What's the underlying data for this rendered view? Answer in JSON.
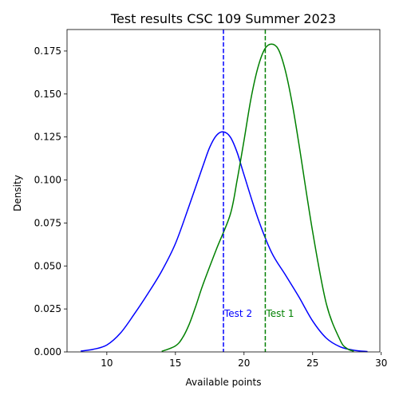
{
  "chart_data": {
    "type": "line",
    "title": "Test results CSC 109 Summer 2023",
    "xlabel": "Available points",
    "ylabel": "Density",
    "xlim": [
      7.1,
      29.9
    ],
    "ylim": [
      0.0,
      0.1875
    ],
    "x_ticks": [
      10,
      15,
      20,
      25,
      30
    ],
    "y_ticks": [
      0.0,
      0.025,
      0.05,
      0.075,
      0.1,
      0.125,
      0.15,
      0.175
    ],
    "x_tick_labels": [
      "10",
      "15",
      "20",
      "25",
      "30"
    ],
    "y_tick_labels": [
      "0.000",
      "0.025",
      "0.050",
      "0.075",
      "0.100",
      "0.125",
      "0.150",
      "0.175"
    ],
    "grid": false,
    "series": [
      {
        "color": "#0000ff",
        "x": [
          8.1,
          9.0,
          10.0,
          11.0,
          12.0,
          13.0,
          14.0,
          15.0,
          16.0,
          17.0,
          17.5,
          18.0,
          18.5,
          19.0,
          19.5,
          20.0,
          21.0,
          22.0,
          23.0,
          24.0,
          25.0,
          26.0,
          27.0,
          28.0,
          29.0
        ],
        "y": [
          0.0005,
          0.0015,
          0.004,
          0.011,
          0.022,
          0.034,
          0.047,
          0.063,
          0.085,
          0.108,
          0.119,
          0.126,
          0.128,
          0.125,
          0.116,
          0.103,
          0.078,
          0.058,
          0.045,
          0.032,
          0.018,
          0.008,
          0.003,
          0.001,
          0.0002
        ]
      },
      {
        "color": "#008000",
        "x": [
          14.0,
          15.0,
          15.5,
          16.0,
          16.5,
          17.0,
          18.0,
          19.0,
          19.5,
          20.0,
          20.5,
          21.0,
          21.5,
          22.0,
          22.5,
          23.0,
          23.5,
          24.0,
          25.0,
          26.0,
          27.0,
          27.5,
          28.0
        ],
        "y": [
          0.0003,
          0.0035,
          0.008,
          0.016,
          0.027,
          0.039,
          0.06,
          0.08,
          0.1,
          0.123,
          0.147,
          0.165,
          0.176,
          0.179,
          0.176,
          0.164,
          0.145,
          0.121,
          0.07,
          0.028,
          0.007,
          0.002,
          0.0004
        ]
      }
    ],
    "vlines": [
      {
        "x": 18.5,
        "color": "#0000ff",
        "style": "dashed",
        "label": "Test 2",
        "label_y": 0.02
      },
      {
        "x": 21.55,
        "color": "#008000",
        "style": "dashed",
        "label": "Test 1",
        "label_y": 0.02
      }
    ]
  }
}
